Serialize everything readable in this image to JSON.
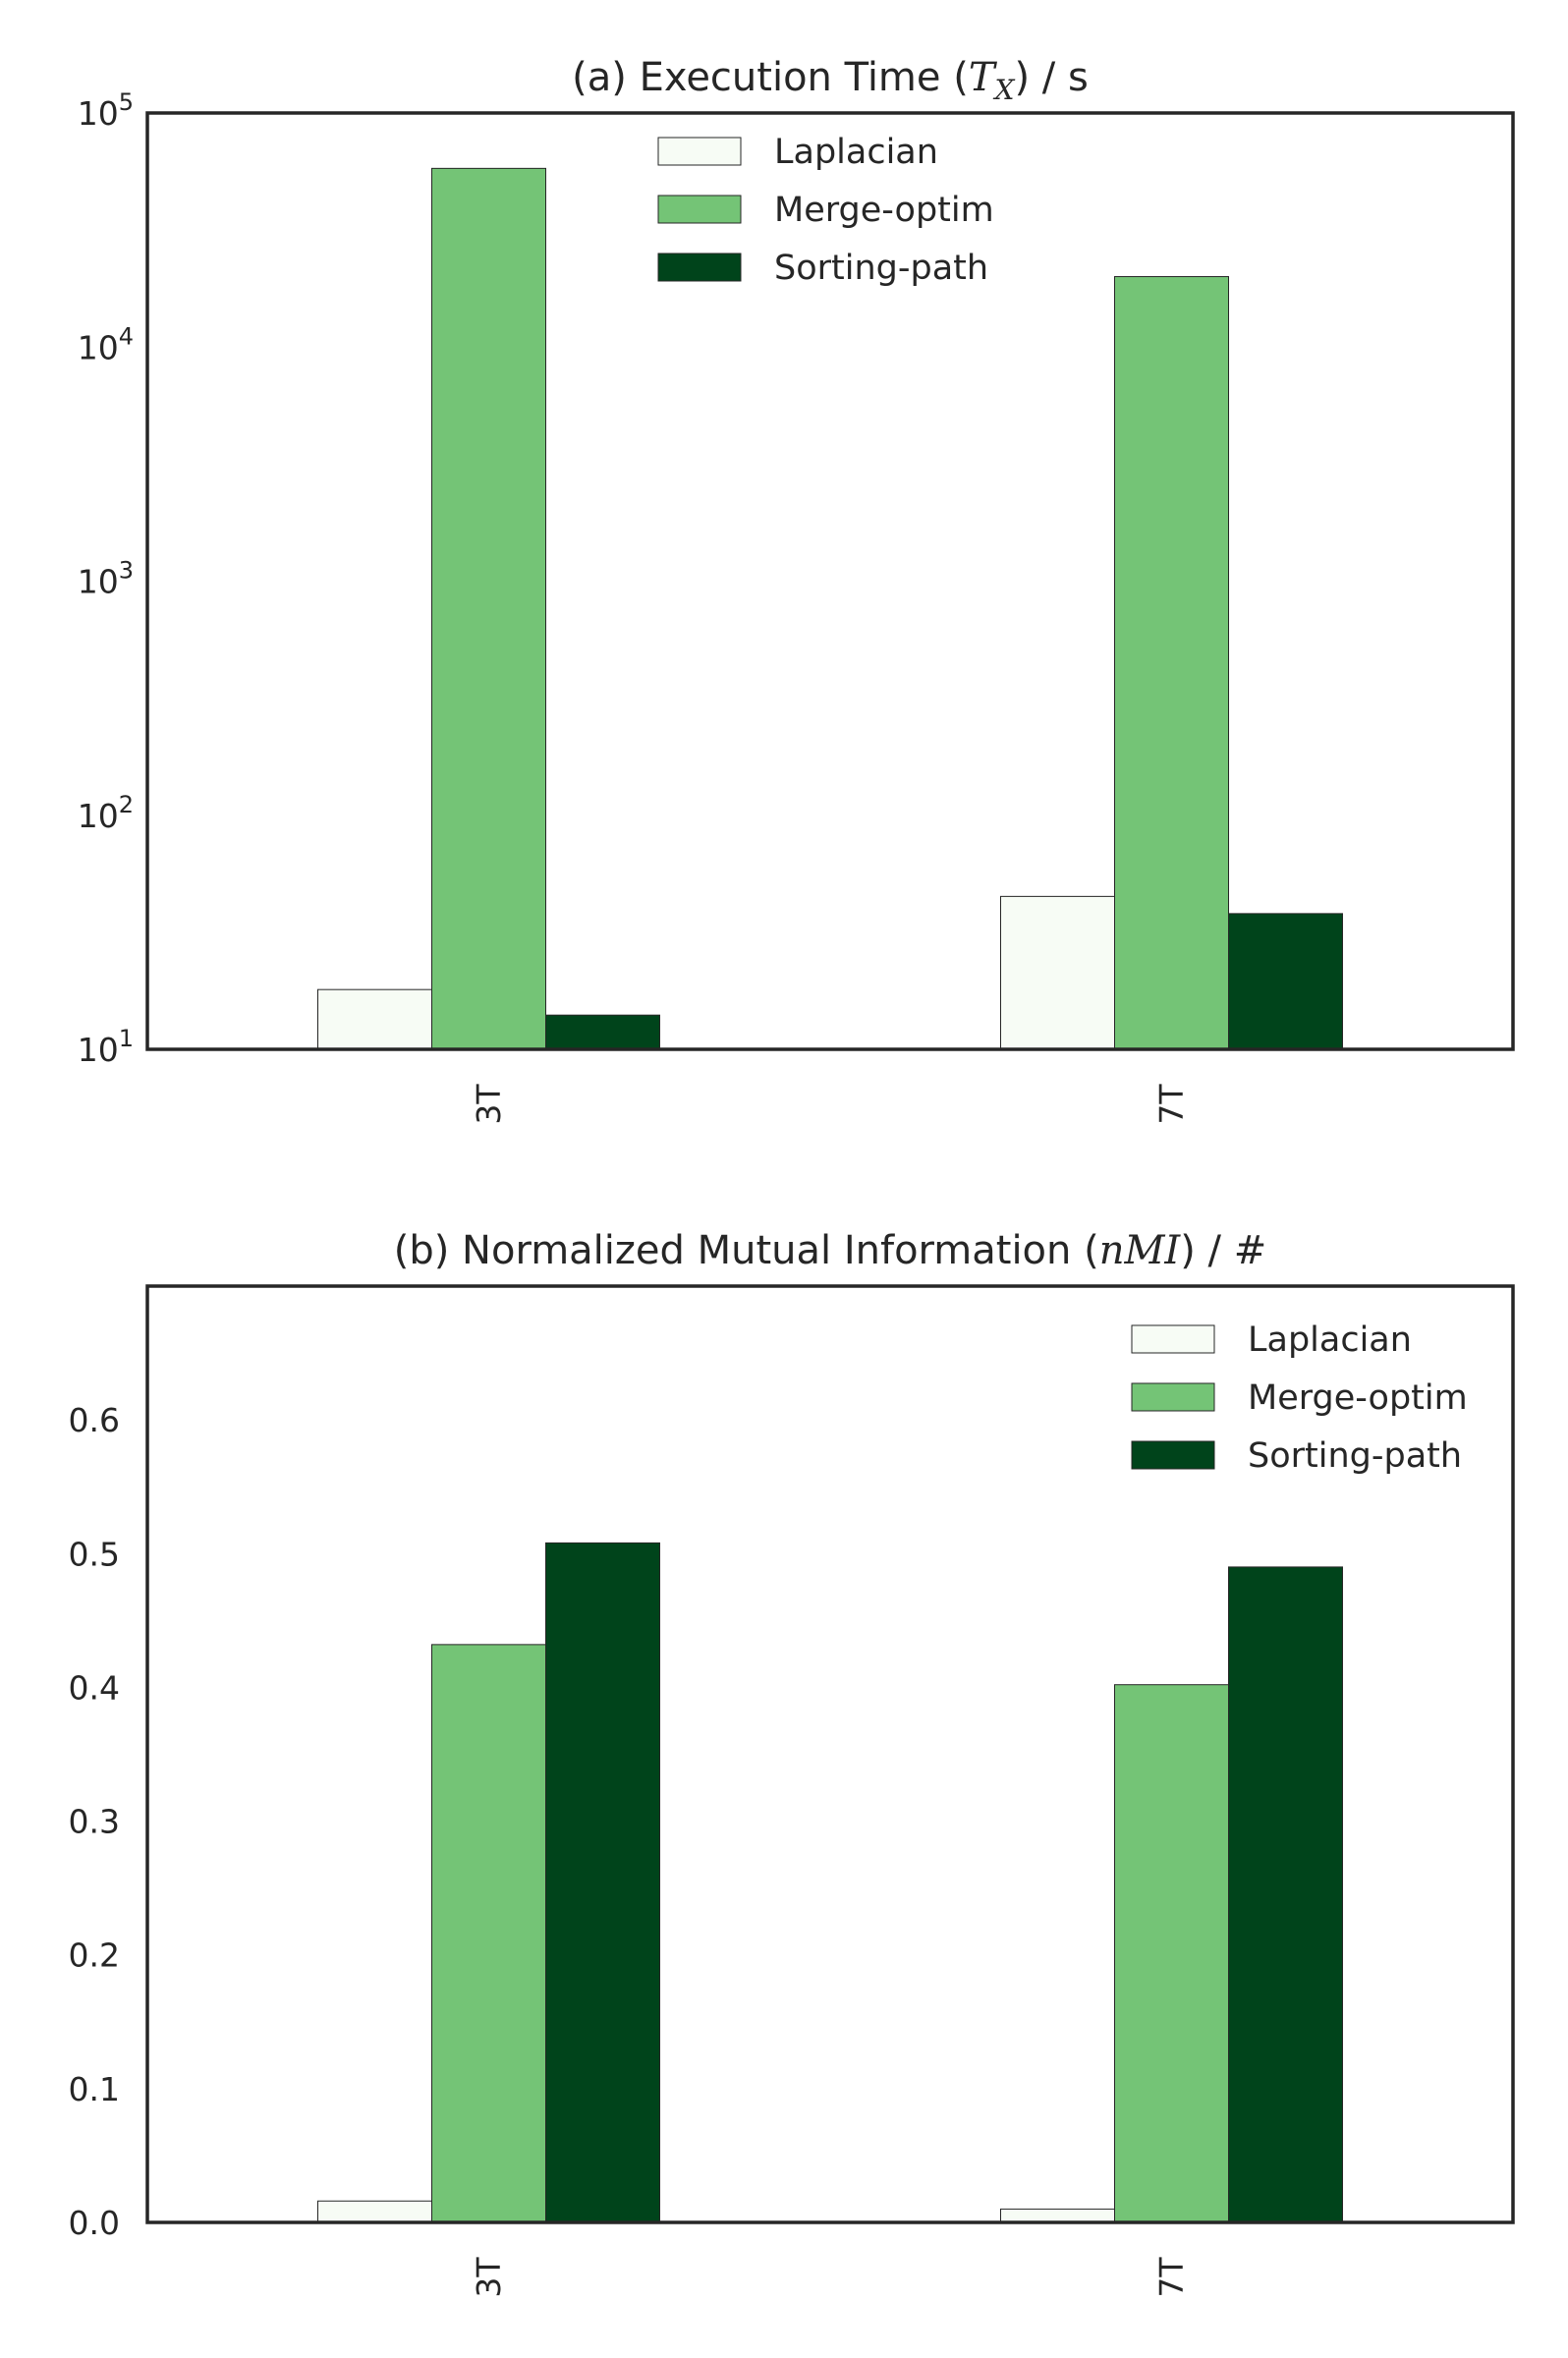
{
  "chart_data": [
    {
      "type": "bar",
      "title_main": "(a) Execution Time (",
      "title_math": "T",
      "title_sub": "X",
      "title_tail": ") / s",
      "categories": [
        "3T",
        "7T"
      ],
      "yscale": "log",
      "ylim": [
        10,
        100000
      ],
      "ytick_base": "10",
      "yticks": [
        {
          "value": 10,
          "exp": "1"
        },
        {
          "value": 100,
          "exp": "2"
        },
        {
          "value": 1000,
          "exp": "3"
        },
        {
          "value": 10000,
          "exp": "4"
        },
        {
          "value": 100000,
          "exp": "5"
        }
      ],
      "grid": false,
      "legend_position": "top-center",
      "series": [
        {
          "name": "Laplacian",
          "color": "#f7fcf5",
          "values": [
            18,
            45
          ]
        },
        {
          "name": "Merge-optim",
          "color": "#74c476",
          "values": [
            58000,
            20000
          ]
        },
        {
          "name": "Sorting-path",
          "color": "#00441b",
          "values": [
            14,
            38
          ]
        }
      ]
    },
    {
      "type": "bar",
      "title_main": "(b) Normalized Mutual Information (",
      "title_math": "nMI",
      "title_sub": "",
      "title_tail": ") / #",
      "categories": [
        "3T",
        "7T"
      ],
      "yscale": "linear",
      "ylim": [
        0,
        0.7
      ],
      "yticks": [
        {
          "value": 0.0,
          "label": "0.0"
        },
        {
          "value": 0.1,
          "label": "0.1"
        },
        {
          "value": 0.2,
          "label": "0.2"
        },
        {
          "value": 0.3,
          "label": "0.3"
        },
        {
          "value": 0.4,
          "label": "0.4"
        },
        {
          "value": 0.5,
          "label": "0.5"
        },
        {
          "value": 0.6,
          "label": "0.6"
        }
      ],
      "grid": false,
      "legend_position": "top-right",
      "series": [
        {
          "name": "Laplacian",
          "color": "#f7fcf5",
          "values": [
            0.016,
            0.01
          ]
        },
        {
          "name": "Merge-optim",
          "color": "#74c476",
          "values": [
            0.432,
            0.402
          ]
        },
        {
          "name": "Sorting-path",
          "color": "#00441b",
          "values": [
            0.508,
            0.49
          ]
        }
      ]
    }
  ]
}
